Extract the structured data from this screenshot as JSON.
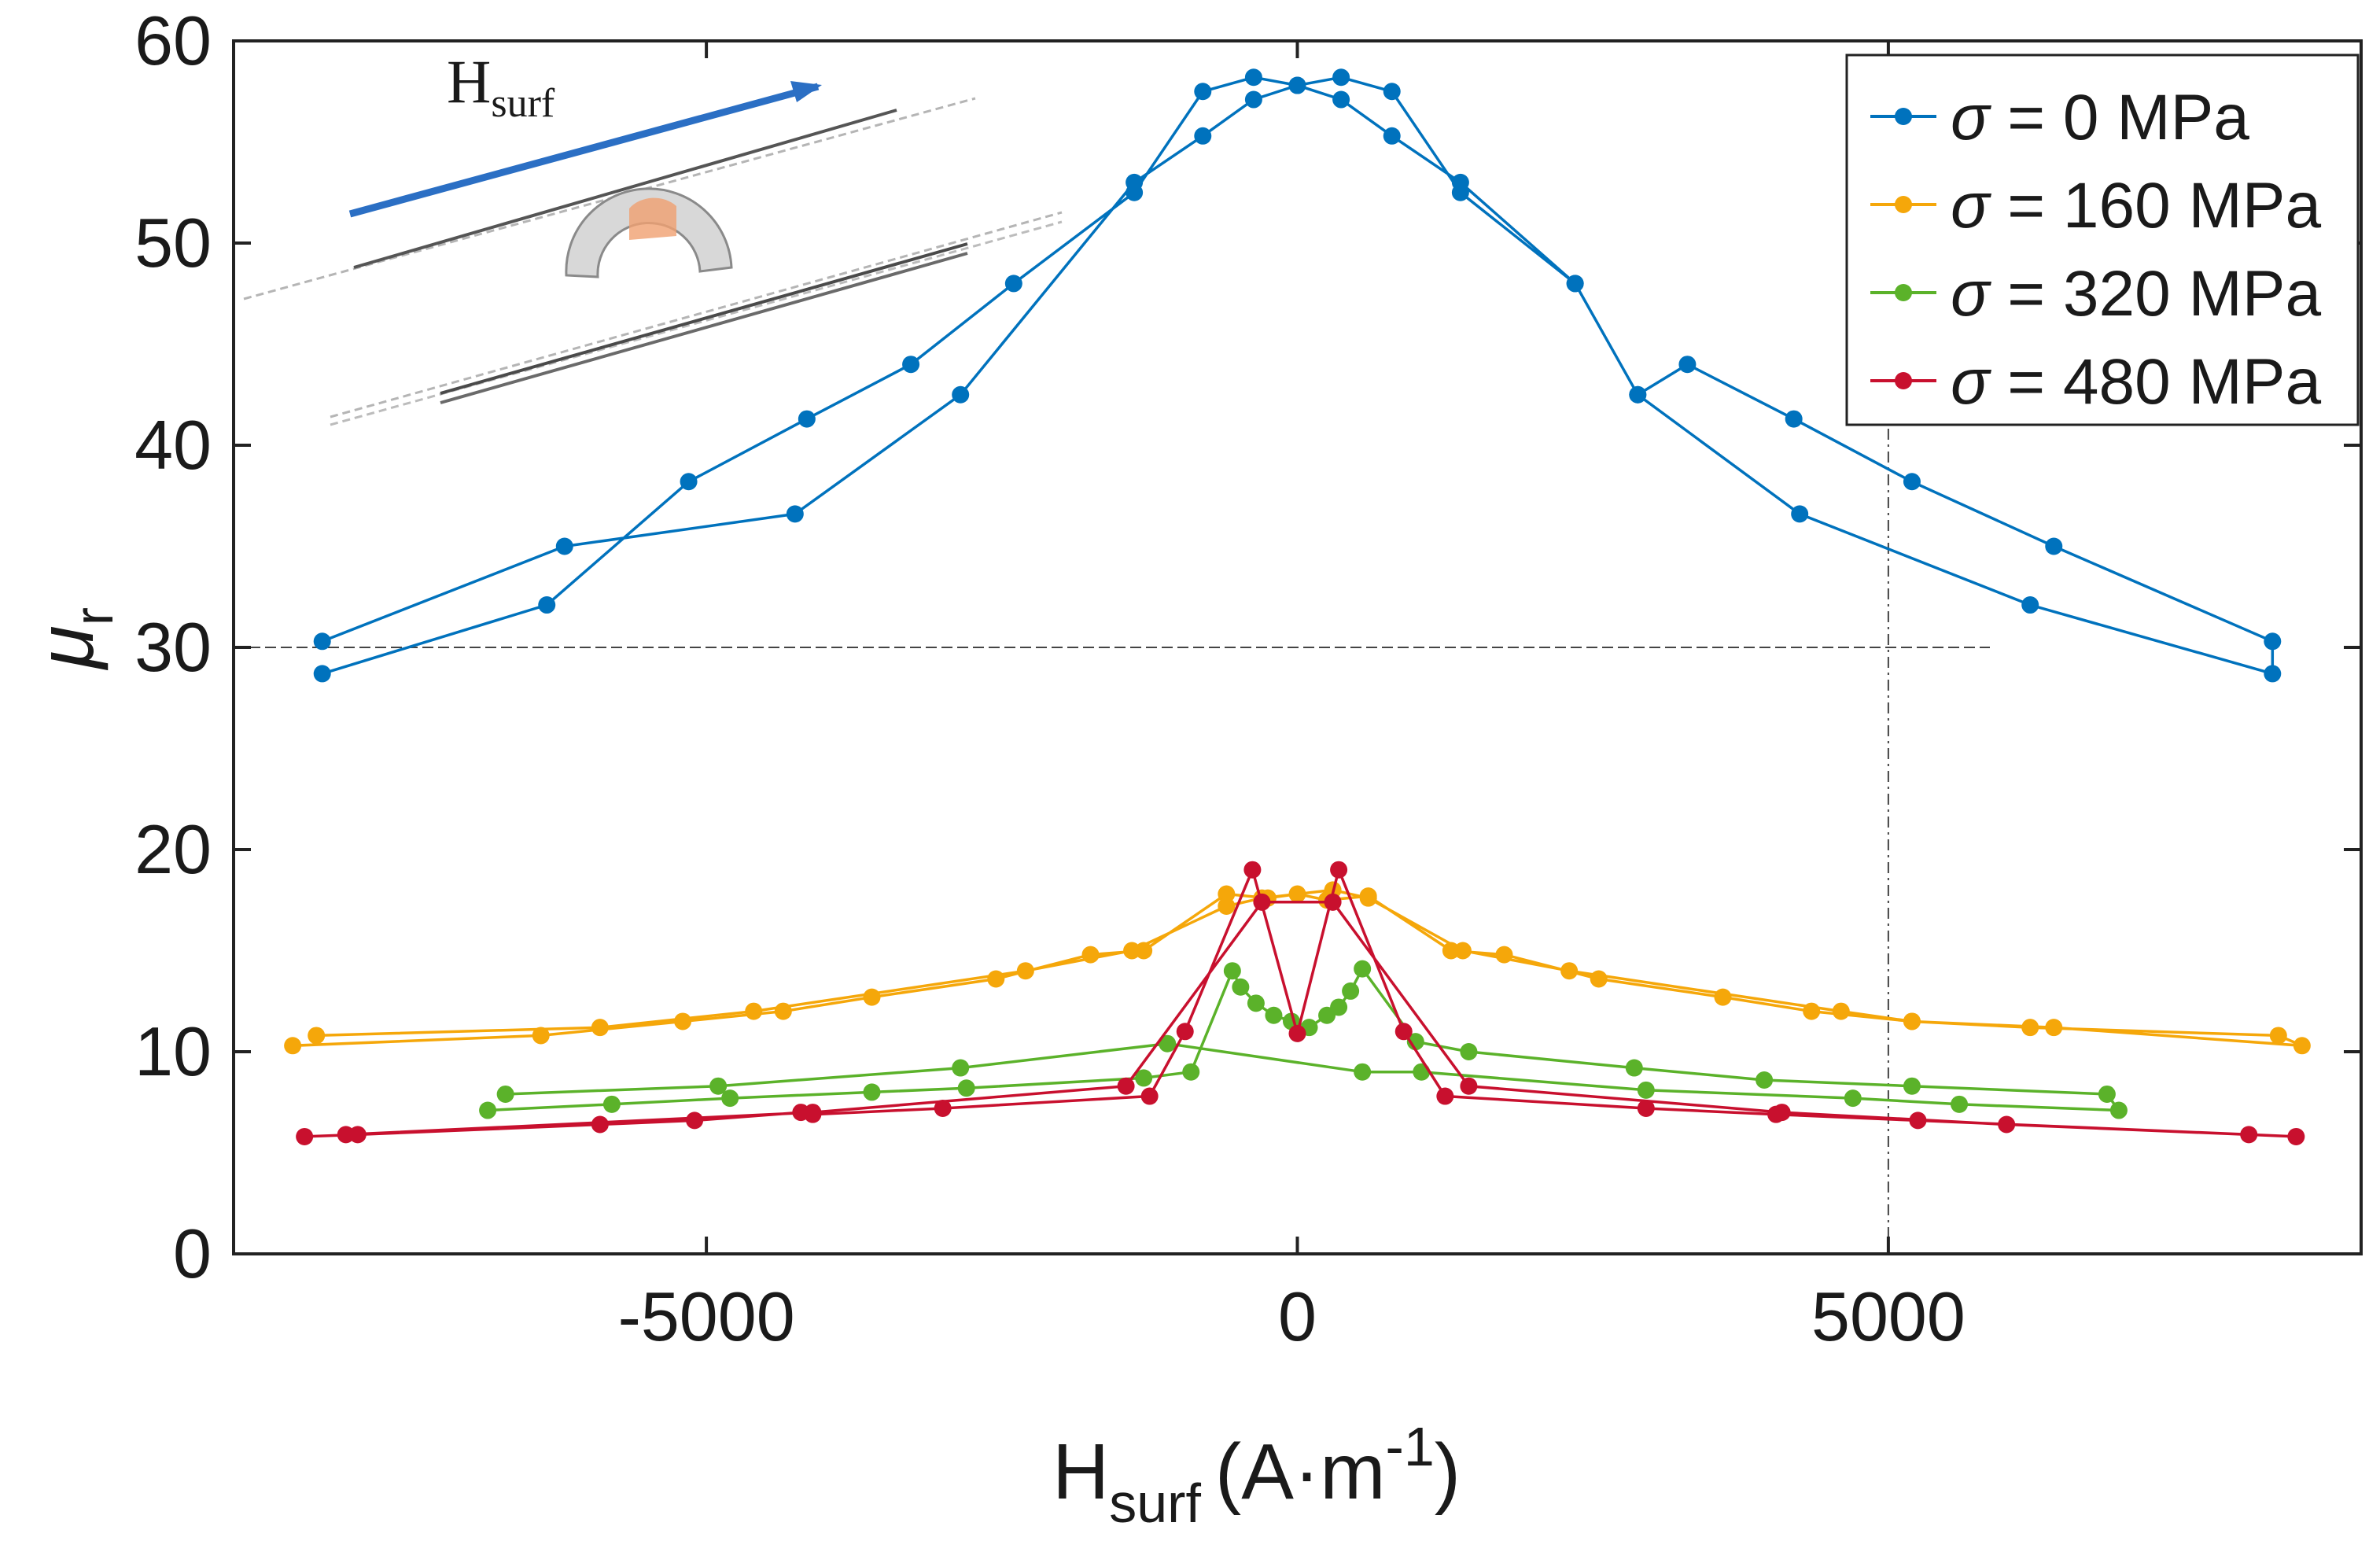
{
  "chart_data": {
    "type": "line",
    "title": "",
    "xlabel": {
      "main": "H",
      "sub": "surf",
      "unit": "(A·m",
      "exp": "-1",
      "close": ")"
    },
    "ylabel": {
      "main": "μ",
      "sub": "r"
    },
    "xlim": [
      -9000,
      9000
    ],
    "ylim": [
      0,
      60
    ],
    "xticks": [
      -5000,
      0,
      5000
    ],
    "xtick_labels": [
      "-5000",
      "0",
      "5000"
    ],
    "yticks": [
      0,
      10,
      20,
      30,
      40,
      50,
      60
    ],
    "ytick_labels": [
      "0",
      "10",
      "20",
      "30",
      "40",
      "50",
      "60"
    ],
    "legend_position": "top-right",
    "inset": {
      "label_main": "H",
      "label_sub": "surf"
    },
    "series": [
      {
        "name": "σ = 0 MPa",
        "label_symbol": "σ",
        "label_rest": " = 0 MPa",
        "color": "#0072bd",
        "x": [
          -8250,
          -6350,
          -5150,
          -4150,
          -3270,
          -2400,
          -1380,
          -800,
          -370,
          0,
          370,
          800,
          1380,
          2350,
          2880,
          4250,
          6200,
          8250,
          8250,
          6400,
          5200,
          4200,
          3300,
          2880,
          2350,
          1380,
          800,
          370,
          0,
          -370,
          -800,
          -1380,
          -2850,
          -4250,
          -6200,
          -8250
        ],
        "y": [
          28.7,
          32.1,
          38.2,
          41.3,
          44.0,
          48.0,
          52.5,
          57.5,
          58.2,
          57.8,
          57.1,
          55.3,
          53.0,
          48.0,
          42.5,
          36.6,
          32.1,
          28.7,
          30.3,
          35.0,
          38.2,
          41.3,
          44.0,
          42.5,
          48.0,
          52.5,
          57.5,
          58.2,
          57.8,
          57.1,
          55.3,
          53.0,
          42.5,
          36.6,
          35.0,
          30.3
        ]
      },
      {
        "name": "σ = 160 MPa",
        "label_symbol": "σ",
        "label_rest": " = 160 MPa",
        "color": "#f5a70a",
        "x": [
          -8500,
          -6400,
          -5200,
          -4350,
          -3600,
          -2550,
          -1750,
          -1300,
          -600,
          -250,
          0,
          250,
          600,
          1300,
          1750,
          2550,
          3600,
          4350,
          5200,
          6400,
          8500,
          8300,
          6200,
          5200,
          4600,
          2300,
          1400,
          600,
          300,
          -300,
          -600,
          -1400,
          -2300,
          -4600,
          -5900,
          -8300
        ],
        "y": [
          10.3,
          10.8,
          11.5,
          12.0,
          12.7,
          13.6,
          14.8,
          15.0,
          17.8,
          17.6,
          17.8,
          17.5,
          17.7,
          15.0,
          14.8,
          13.6,
          12.7,
          12.0,
          11.5,
          11.2,
          10.3,
          10.8,
          11.2,
          11.5,
          12.0,
          14.0,
          15.0,
          17.6,
          18.0,
          17.6,
          17.2,
          15.0,
          14.0,
          12.0,
          11.2,
          10.8
        ]
      },
      {
        "name": "σ = 320 MPa",
        "label_symbol": "σ",
        "label_rest": " = 320 MPa",
        "color": "#5bb22a",
        "x": [
          -6850,
          -5800,
          -4800,
          -3600,
          -2800,
          -1300,
          -900,
          -550,
          -480,
          -350,
          -200,
          -50,
          100,
          250,
          350,
          450,
          550,
          1000,
          1450,
          2850,
          3950,
          5200,
          6850,
          6950,
          5600,
          4700,
          2950,
          1050,
          550,
          -1100,
          -2850,
          -4900,
          -6700
        ],
        "y": [
          7.1,
          7.4,
          7.7,
          8.0,
          8.2,
          8.7,
          9.0,
          14.0,
          13.2,
          12.4,
          11.8,
          11.5,
          11.2,
          11.8,
          12.2,
          13.0,
          14.1,
          10.5,
          10.0,
          9.2,
          8.6,
          8.3,
          7.9,
          7.1,
          7.4,
          7.7,
          8.1,
          9.0,
          9.0,
          10.4,
          9.2,
          8.3,
          7.9
        ]
      },
      {
        "name": "σ = 480 MPa",
        "label_symbol": "σ",
        "label_rest": " = 480 MPa",
        "color": "#c8102e",
        "x": [
          -8400,
          -7950,
          -5900,
          -5100,
          -4200,
          -4100,
          -3000,
          -1250,
          -950,
          -380,
          0,
          350,
          900,
          1250,
          2950,
          4050,
          5250,
          8450,
          8050,
          6000,
          4100,
          1450,
          300,
          -300,
          -1450,
          -4100,
          -8050
        ],
        "y": [
          5.8,
          5.9,
          6.4,
          6.6,
          7.0,
          6.9,
          7.2,
          7.8,
          11.0,
          19.0,
          10.9,
          19.0,
          11.0,
          7.8,
          7.2,
          6.9,
          6.6,
          5.8,
          5.9,
          6.4,
          7.0,
          8.3,
          17.4,
          17.4,
          8.3,
          7.0,
          5.9
        ]
      }
    ]
  }
}
